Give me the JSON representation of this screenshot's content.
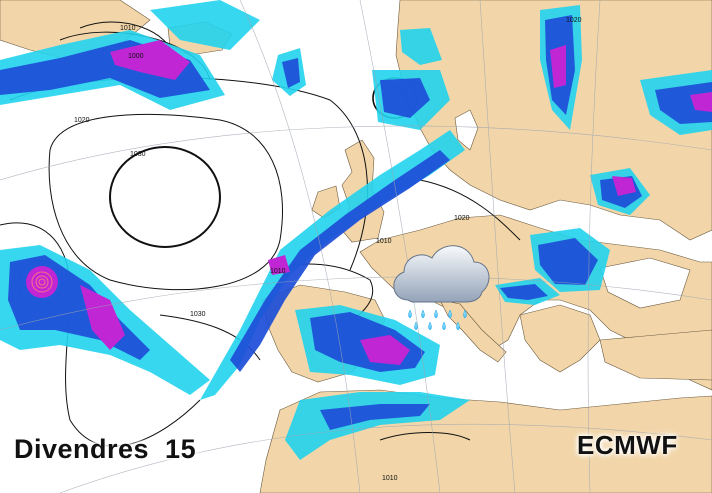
{
  "forecast_day": "Divendres  15",
  "model": "ECMWF",
  "isobar_labels": [
    "1000",
    "1010",
    "1020",
    "1020",
    "1030",
    "1010",
    "1020",
    "1010",
    "1030",
    "1010"
  ],
  "weather_icon": "cloud-rain-icon",
  "colors": {
    "land": "#f2d6a9",
    "sea": "#ffffff",
    "precip_light": "#22d3ee",
    "precip_moderate": "#1d4ed8",
    "precip_heavy": "#c026d3",
    "isobar": "#111111"
  }
}
